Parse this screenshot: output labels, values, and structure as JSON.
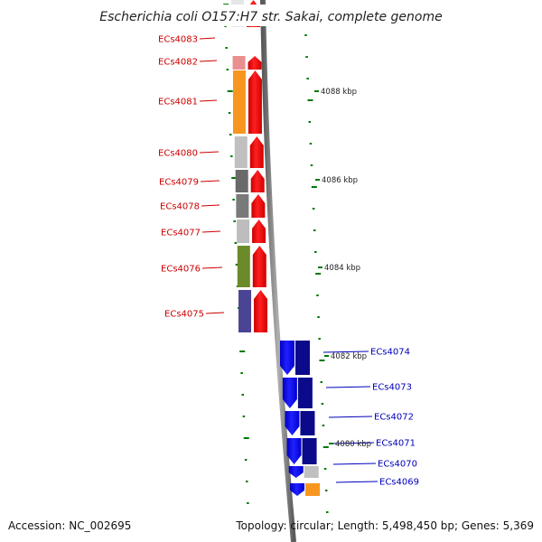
{
  "title": "Escherichia coli O157:H7 str. Sakai, complete genome",
  "accession": "Accession: NC_002695",
  "topology": "Topology: circular; Length: 5,498,450 bp; Genes: 5,369",
  "colors": {
    "forward": "#ff0000",
    "reverse": "#0000ee",
    "forward_label": "#cc0000",
    "reverse_label": "#0000bb",
    "tick": "#007700",
    "backbone": "#808080"
  },
  "scale_ticks": [
    {
      "label": "4088 kbp"
    },
    {
      "label": "4086 kbp"
    },
    {
      "label": "4084 kbp"
    },
    {
      "label": "4082 kbp"
    },
    {
      "label": "4080 kbp"
    }
  ],
  "genes": [
    {
      "name": "ECs4083",
      "strand": "forward",
      "cog_color": "#e6e6e6"
    },
    {
      "name": "ECs4082",
      "strand": "forward",
      "cog_color": "#ea8f8f"
    },
    {
      "name": "ECs4081",
      "strand": "forward",
      "cog_color": "#f7961f"
    },
    {
      "name": "ECs4080",
      "strand": "forward",
      "cog_color": "#c0c0c0"
    },
    {
      "name": "ECs4079",
      "strand": "forward",
      "cog_color": "#6a6a6a"
    },
    {
      "name": "ECs4078",
      "strand": "forward",
      "cog_color": "#7a7a7a"
    },
    {
      "name": "ECs4077",
      "strand": "forward",
      "cog_color": "#bdbdbd"
    },
    {
      "name": "ECs4076",
      "strand": "forward",
      "cog_color": "#6b8a2a"
    },
    {
      "name": "ECs4075",
      "strand": "forward",
      "cog_color": "#4a4494"
    },
    {
      "name": "ECs4074",
      "strand": "reverse",
      "cog_color": "#0a0a8a"
    },
    {
      "name": "ECs4073",
      "strand": "reverse",
      "cog_color": "#0a0a8a"
    },
    {
      "name": "ECs4072",
      "strand": "reverse",
      "cog_color": "#0a0a8a"
    },
    {
      "name": "ECs4071",
      "strand": "reverse",
      "cog_color": "#0a0a8a"
    },
    {
      "name": "ECs4070",
      "strand": "reverse",
      "cog_color": "#c0c0c0"
    },
    {
      "name": "ECs4069",
      "strand": "reverse",
      "cog_color": "#f7961f"
    }
  ]
}
